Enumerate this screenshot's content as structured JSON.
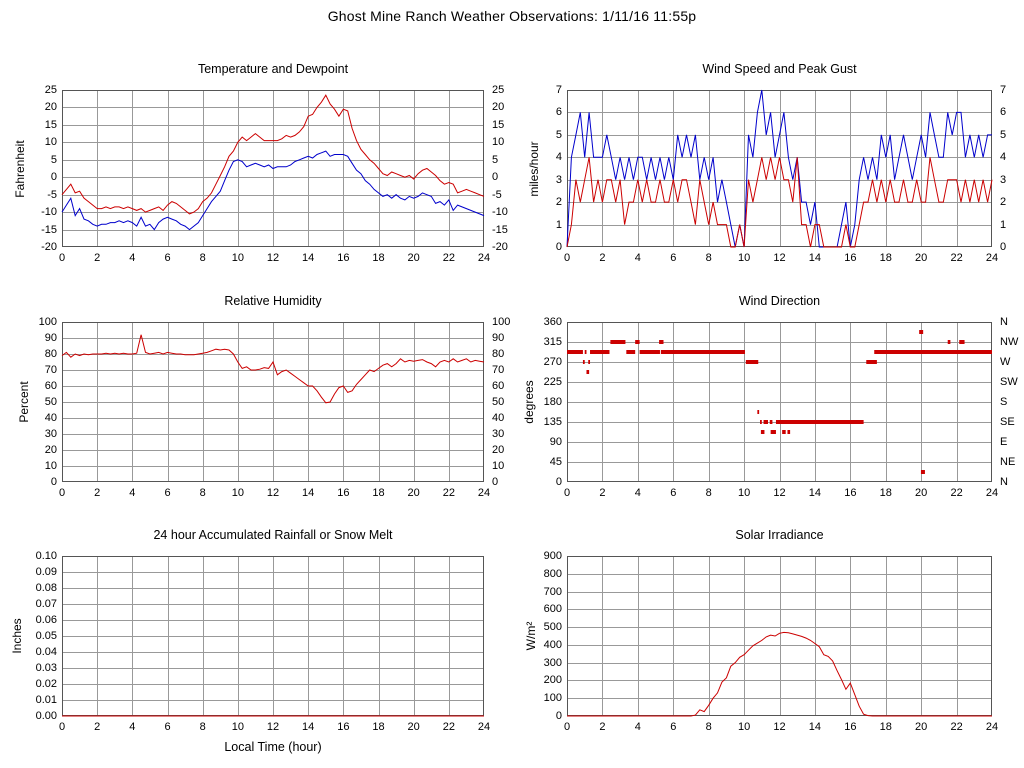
{
  "page": {
    "title": "Ghost Mine Ranch Weather Observations: 1/11/16 11:55p"
  },
  "style": {
    "red": "#cc0000",
    "blue": "#0000cc",
    "grid": "#999999",
    "border": "#555555",
    "text": "#000000",
    "background": "#ffffff"
  },
  "x_axis": {
    "xlim": [
      0,
      24
    ],
    "ticks": [
      0,
      2,
      4,
      6,
      8,
      10,
      12,
      14,
      16,
      18,
      20,
      22,
      24
    ],
    "labels": [
      "0",
      "2",
      "4",
      "6",
      "8",
      "10",
      "12",
      "14",
      "16",
      "18",
      "20",
      "22",
      "24"
    ]
  },
  "chart_data": [
    {
      "type": "line",
      "title": "Temperature and Dewpoint",
      "ylabel": "Fahrenheit",
      "ylim": [
        -20,
        25
      ],
      "yticks": [
        -20,
        -15,
        -10,
        -5,
        0,
        5,
        10,
        15,
        20,
        25
      ],
      "ytick_labels": [
        "-20",
        "-15",
        "-10",
        "-5",
        "0",
        "5",
        "10",
        "15",
        "20",
        "25"
      ],
      "right_tick_labels": [
        "-20",
        "-15",
        "-10",
        "-5",
        "0",
        "5",
        "10",
        "15",
        "20",
        "25"
      ],
      "series": [
        {
          "name": "temperature",
          "color": "#cc0000",
          "x0": 0,
          "dx": 0.25,
          "y": [
            -5,
            -3.5,
            -2,
            -4.5,
            -4,
            -6,
            -7,
            -8,
            -9,
            -9,
            -8.5,
            -9,
            -8.5,
            -8.5,
            -9,
            -8.5,
            -9,
            -9.5,
            -9,
            -10,
            -9.5,
            -9,
            -8.5,
            -9.5,
            -8,
            -7,
            -7.5,
            -8.5,
            -9.5,
            -10.5,
            -10,
            -9,
            -7,
            -6,
            -4.5,
            -2,
            0.5,
            3,
            6,
            7.5,
            10,
            11.5,
            10.5,
            11.5,
            12.5,
            11.5,
            10.5,
            10.5,
            10.5,
            10.5,
            11,
            12,
            11.5,
            12,
            13,
            14.5,
            17.5,
            18,
            20,
            21.5,
            23.5,
            21,
            19.5,
            17.5,
            19.5,
            19,
            14,
            10.5,
            8,
            6.5,
            5,
            4,
            2.5,
            1,
            0.5,
            1.5,
            1,
            0.5,
            0,
            0.5,
            -0.5,
            1,
            2,
            2.5,
            1.5,
            0.5,
            -1,
            -2,
            -1.5,
            -2,
            -4.5,
            -4,
            -3.5,
            -4,
            -4.5,
            -5,
            -5.5
          ]
        },
        {
          "name": "dewpoint",
          "color": "#0000cc",
          "x0": 0,
          "dx": 0.25,
          "y": [
            -10,
            -8,
            -6,
            -11,
            -9,
            -12,
            -12.5,
            -13.5,
            -14,
            -13.5,
            -13.5,
            -13,
            -13,
            -12.5,
            -13,
            -12.5,
            -13,
            -14,
            -11.5,
            -14,
            -13.5,
            -15,
            -13,
            -12,
            -11.5,
            -12,
            -12.5,
            -13.5,
            -14,
            -15,
            -14,
            -13,
            -11,
            -9,
            -7,
            -5.5,
            -4,
            -1,
            2,
            4.5,
            5,
            4.5,
            3,
            3.5,
            4,
            3.5,
            3,
            3.5,
            2.5,
            3,
            3,
            3,
            3.5,
            4.5,
            5,
            5.5,
            6,
            5.5,
            6.5,
            7,
            7.5,
            6,
            6.5,
            6.5,
            6.5,
            6,
            4,
            2,
            1,
            -1,
            -2,
            -3.5,
            -4.5,
            -5.5,
            -5,
            -6,
            -5,
            -6,
            -6.5,
            -5.5,
            -6,
            -5.5,
            -4.5,
            -5,
            -5.5,
            -7.5,
            -7,
            -8,
            -6.5,
            -9.5,
            -8,
            -8.5,
            -9,
            -9.5,
            -10,
            -10.5,
            -11
          ]
        }
      ]
    },
    {
      "type": "line",
      "title": "Wind Speed and Peak Gust",
      "ylabel": "miles/hour",
      "ylim": [
        0,
        7
      ],
      "yticks": [
        0,
        1,
        2,
        3,
        4,
        5,
        6,
        7
      ],
      "ytick_labels": [
        "0",
        "1",
        "2",
        "3",
        "4",
        "5",
        "6",
        "7"
      ],
      "right_tick_labels": [
        "0",
        "1",
        "2",
        "3",
        "4",
        "5",
        "6",
        "7"
      ],
      "series": [
        {
          "name": "peak-gust",
          "color": "#0000cc",
          "x0": 0,
          "dx": 0.25,
          "y": [
            0,
            4,
            5,
            6,
            4,
            6,
            4,
            4,
            4,
            5,
            4,
            3,
            4,
            3,
            4,
            3,
            4,
            4,
            3,
            4,
            3,
            4,
            3,
            4,
            3,
            5,
            4,
            5,
            4,
            5,
            3,
            4,
            3,
            4,
            2,
            3,
            2,
            1,
            0,
            1,
            0,
            5,
            4,
            6,
            7,
            5,
            6,
            4,
            5,
            6,
            4,
            3,
            4,
            2,
            2,
            1,
            2,
            0,
            0,
            0,
            0,
            0,
            1,
            2,
            0,
            1,
            3,
            4,
            3,
            4,
            3,
            5,
            4,
            5,
            3,
            4,
            5,
            4,
            3,
            4,
            5,
            4,
            6,
            5,
            4,
            4,
            6,
            5,
            6,
            6,
            4,
            5,
            4,
            5,
            4,
            5,
            5
          ]
        },
        {
          "name": "wind-speed",
          "color": "#cc0000",
          "x0": 0,
          "dx": 0.25,
          "y": [
            0,
            1,
            3,
            2,
            3,
            4,
            2,
            3,
            2,
            3,
            3,
            2,
            3,
            1,
            2,
            2,
            3,
            2,
            3,
            2,
            2,
            3,
            2,
            2,
            3,
            2,
            3,
            3,
            2,
            1,
            3,
            2,
            1,
            2,
            1,
            1,
            1,
            0,
            0,
            1,
            0,
            3,
            2,
            3,
            4,
            3,
            4,
            3,
            4,
            3,
            3,
            2,
            4,
            1,
            1,
            0,
            1,
            1,
            0,
            0,
            0,
            0,
            0,
            1,
            0,
            0,
            1,
            2,
            2,
            3,
            2,
            3,
            2,
            3,
            2,
            2,
            3,
            2,
            2,
            3,
            2,
            2,
            4,
            3,
            2,
            2,
            3,
            3,
            3,
            2,
            3,
            2,
            3,
            2,
            3,
            2,
            3
          ]
        }
      ]
    },
    {
      "type": "line",
      "title": "Relative Humidity",
      "ylabel": "Percent",
      "ylim": [
        0,
        100
      ],
      "yticks": [
        0,
        10,
        20,
        30,
        40,
        50,
        60,
        70,
        80,
        90,
        100
      ],
      "ytick_labels": [
        "0",
        "10",
        "20",
        "30",
        "40",
        "50",
        "60",
        "70",
        "80",
        "90",
        "100"
      ],
      "right_tick_labels": [
        "0",
        "10",
        "20",
        "30",
        "40",
        "50",
        "60",
        "70",
        "80",
        "90",
        "100"
      ],
      "series": [
        {
          "name": "relative-humidity",
          "color": "#cc0000",
          "x0": 0,
          "dx": 0.25,
          "y": [
            79,
            81,
            78,
            80,
            79,
            80,
            79.5,
            80,
            80,
            80,
            80.5,
            80,
            80.5,
            80,
            80.5,
            80,
            80,
            80.5,
            92,
            81,
            80,
            80.5,
            81,
            80,
            81,
            80.5,
            80,
            80,
            79.5,
            79.5,
            79.5,
            80,
            80.5,
            81,
            82,
            83,
            82.5,
            83,
            82.5,
            80,
            75,
            71,
            72,
            70,
            70,
            70.5,
            71.5,
            71,
            75,
            67,
            69,
            70,
            68,
            66,
            64,
            62,
            60,
            60,
            57,
            53,
            49.5,
            50,
            55,
            59,
            60,
            56,
            57,
            61,
            64,
            67,
            70,
            69,
            71,
            73,
            74,
            72,
            74,
            77,
            75,
            76,
            75.5,
            76,
            76.5,
            75,
            74,
            72,
            75,
            76,
            75,
            77,
            75,
            76,
            77,
            75,
            76,
            75.5,
            75
          ]
        }
      ]
    },
    {
      "type": "scatter",
      "title": "Wind Direction",
      "ylabel": "degrees",
      "ylim": [
        0,
        360
      ],
      "yticks": [
        0,
        45,
        90,
        135,
        180,
        225,
        270,
        315,
        360
      ],
      "ytick_labels": [
        "0",
        "45",
        "90",
        "135",
        "180",
        "225",
        "270",
        "315",
        "360"
      ],
      "right_tick_labels": [
        "N",
        "NE",
        "E",
        "SE",
        "S",
        "SW",
        "W",
        "NW",
        "N"
      ],
      "marker_color": "#cc0000",
      "segments": [
        [
          0,
          0.9,
          292.5
        ],
        [
          1.0,
          1.1,
          292.5
        ],
        [
          1.3,
          2.4,
          292.5
        ],
        [
          3.35,
          3.85,
          292.5
        ],
        [
          4.1,
          5.25,
          292.5
        ],
        [
          5.3,
          10.05,
          292.5
        ],
        [
          17.35,
          24,
          292.5
        ],
        [
          2.45,
          3.3,
          315
        ],
        [
          3.85,
          4.1,
          315
        ],
        [
          5.2,
          5.45,
          315
        ],
        [
          21.5,
          21.65,
          315
        ],
        [
          22.15,
          22.45,
          315
        ],
        [
          0.9,
          1.0,
          270
        ],
        [
          1.2,
          1.3,
          270
        ],
        [
          10.1,
          10.8,
          270
        ],
        [
          16.9,
          17.5,
          270
        ],
        [
          1.1,
          1.25,
          247.5
        ],
        [
          10.75,
          10.85,
          157.5
        ],
        [
          10.9,
          11.0,
          135
        ],
        [
          11.1,
          11.35,
          135
        ],
        [
          11.45,
          11.6,
          135
        ],
        [
          11.8,
          16.75,
          135
        ],
        [
          10.95,
          11.15,
          112.5
        ],
        [
          11.5,
          11.8,
          112.5
        ],
        [
          12.15,
          12.35,
          112.5
        ],
        [
          12.45,
          12.6,
          112.5
        ]
      ],
      "points": [
        [
          20.0,
          337.5
        ],
        [
          20.1,
          22.5
        ]
      ]
    },
    {
      "type": "line",
      "title": "24 hour Accumulated Rainfall or Snow Melt",
      "ylabel": "Inches",
      "xlabel": "Local Time (hour)",
      "ylim": [
        0,
        0.1
      ],
      "yticks": [
        0,
        0.01,
        0.02,
        0.03,
        0.04,
        0.05,
        0.06,
        0.07,
        0.08,
        0.09,
        0.1
      ],
      "ytick_labels": [
        "0.00",
        "0.01",
        "0.02",
        "0.03",
        "0.04",
        "0.05",
        "0.06",
        "0.07",
        "0.08",
        "0.09",
        "0.10"
      ],
      "series": [
        {
          "name": "rainfall",
          "color": "#cc0000",
          "x0": 0,
          "dx": 24,
          "y": [
            0,
            0
          ]
        }
      ]
    },
    {
      "type": "line",
      "title": "Solar Irradiance",
      "ylabel": "W/m²",
      "ylim": [
        0,
        900
      ],
      "yticks": [
        0,
        100,
        200,
        300,
        400,
        500,
        600,
        700,
        800,
        900
      ],
      "ytick_labels": [
        "0",
        "100",
        "200",
        "300",
        "400",
        "500",
        "600",
        "700",
        "800",
        "900"
      ],
      "series": [
        {
          "name": "solar-irradiance",
          "color": "#cc0000",
          "x0": 0,
          "dx": 0.25,
          "y": [
            0,
            0,
            0,
            0,
            0,
            0,
            0,
            0,
            0,
            0,
            0,
            0,
            0,
            0,
            0,
            0,
            0,
            0,
            0,
            0,
            0,
            0,
            0,
            0,
            0,
            0,
            0,
            0,
            0,
            5,
            35,
            25,
            60,
            100,
            130,
            190,
            215,
            280,
            300,
            330,
            345,
            370,
            395,
            410,
            425,
            445,
            455,
            450,
            465,
            470,
            468,
            462,
            455,
            448,
            438,
            425,
            408,
            390,
            345,
            335,
            310,
            255,
            205,
            150,
            185,
            120,
            55,
            10,
            2,
            0,
            0,
            0,
            0,
            0,
            0,
            0,
            0,
            0,
            0,
            0,
            0,
            0,
            0,
            0,
            0,
            0,
            0,
            0,
            0,
            0,
            0,
            0,
            0,
            0,
            0,
            0,
            0
          ]
        }
      ]
    }
  ]
}
